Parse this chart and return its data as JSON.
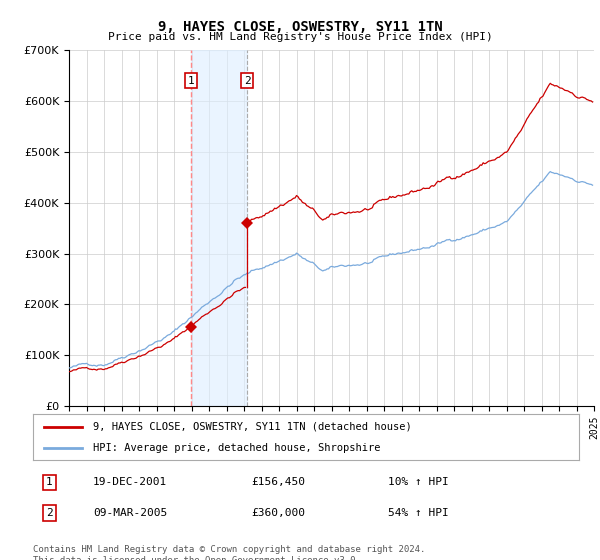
{
  "title": "9, HAYES CLOSE, OSWESTRY, SY11 1TN",
  "subtitle": "Price paid vs. HM Land Registry's House Price Index (HPI)",
  "legend_line1": "9, HAYES CLOSE, OSWESTRY, SY11 1TN (detached house)",
  "legend_line2": "HPI: Average price, detached house, Shropshire",
  "transaction1_date": "19-DEC-2001",
  "transaction1_price": 156450,
  "transaction1_hpi": "10% ↑ HPI",
  "transaction2_date": "09-MAR-2005",
  "transaction2_price": 360000,
  "transaction2_hpi": "54% ↑ HPI",
  "footer": "Contains HM Land Registry data © Crown copyright and database right 2024.\nThis data is licensed under the Open Government Licence v3.0.",
  "hpi_color": "#7aaadd",
  "price_color": "#cc0000",
  "marker_color": "#cc0000",
  "shade_color": "#ddeeff",
  "vline1_color": "#ff8888",
  "vline2_color": "#aaaaaa",
  "grid_color": "#cccccc",
  "bg_color": "#ffffff",
  "ylim": [
    0,
    700000
  ],
  "yticks": [
    0,
    100000,
    200000,
    300000,
    400000,
    500000,
    600000,
    700000
  ],
  "start_year": 1995,
  "end_year": 2025,
  "t1_year": 2001.963,
  "t2_year": 2005.185
}
